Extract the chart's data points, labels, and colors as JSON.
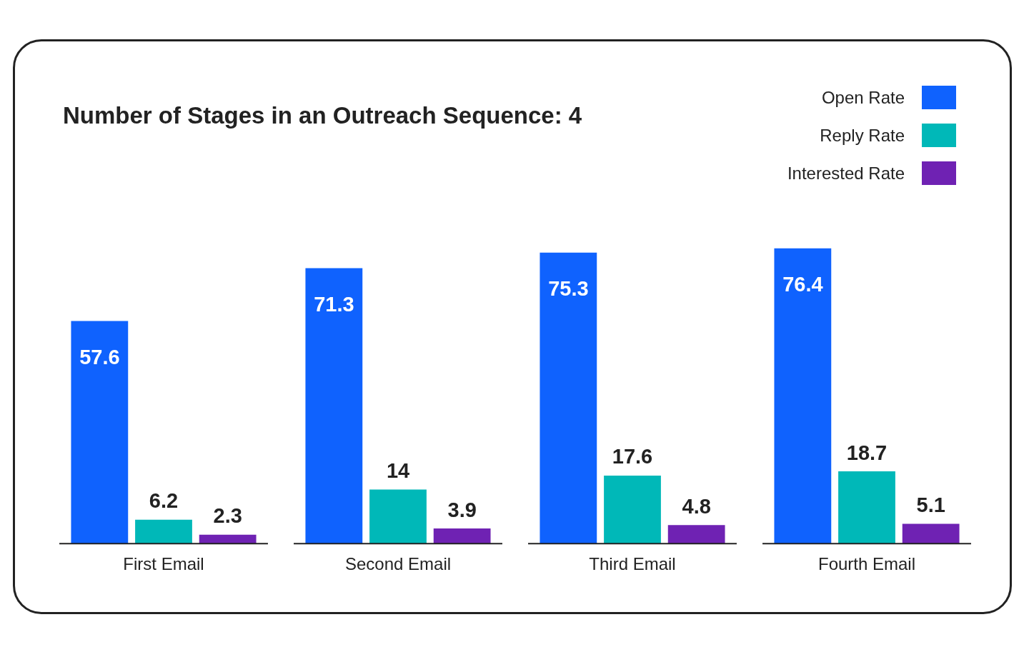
{
  "chart_data": {
    "type": "bar",
    "title": "Number of Stages in an Outreach Sequence: 4",
    "categories": [
      "First Email",
      "Second Email",
      "Third Email",
      "Fourth Email"
    ],
    "series": [
      {
        "name": "Open Rate",
        "color": "#0f62fe",
        "values": [
          57.6,
          71.3,
          75.3,
          76.4
        ]
      },
      {
        "name": "Reply Rate",
        "color": "#00b8b8",
        "values": [
          6.2,
          14,
          17.6,
          18.7
        ]
      },
      {
        "name": "Interested Rate",
        "color": "#6f22b3",
        "values": [
          2.3,
          3.9,
          4.8,
          5.1
        ]
      }
    ],
    "data_labels": true,
    "legend": "top right",
    "grid": false
  }
}
